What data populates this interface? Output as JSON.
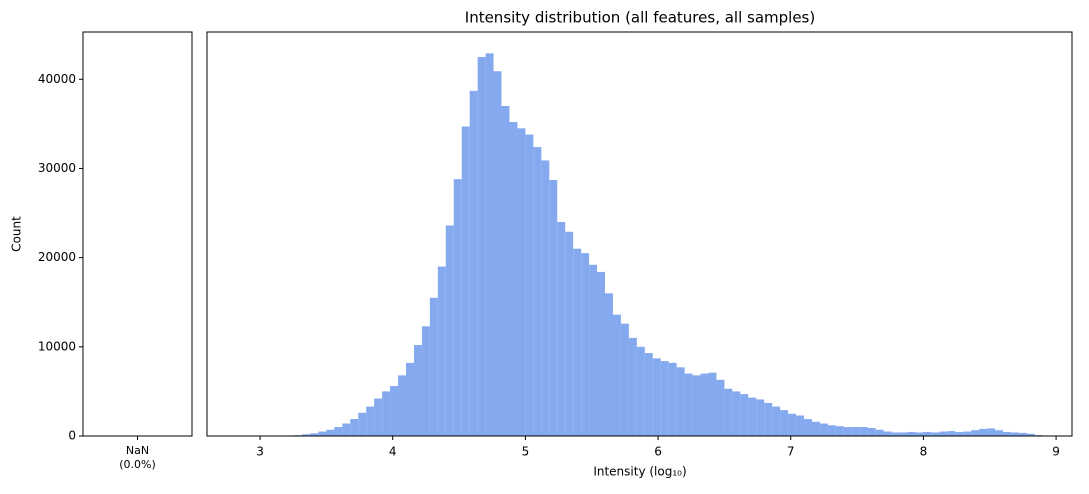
{
  "chart_data": [
    {
      "type": "bar",
      "categories": [
        "NaN"
      ],
      "subcategories": [
        "(0.0%)"
      ],
      "values": [
        0
      ],
      "color": "#84a9ef",
      "ylabel": "Count",
      "ylim": [
        0,
        45300
      ],
      "yticks": [
        0,
        10000,
        20000,
        30000,
        40000
      ]
    },
    {
      "type": "histogram",
      "title": "Intensity distribution (all features, all samples)",
      "xlabel": "Intensity (log₁₀)",
      "color": "#84a9ef",
      "xlim": [
        2.6,
        9.12
      ],
      "xticks": [
        3,
        4,
        5,
        6,
        7,
        8,
        9
      ],
      "ylim": [
        0,
        45300
      ],
      "bins": [
        2.9,
        2.96,
        3.02,
        3.08,
        3.14,
        3.2,
        3.26,
        3.32,
        3.38,
        3.44,
        3.5,
        3.56,
        3.62,
        3.68,
        3.74,
        3.8,
        3.86,
        3.92,
        3.98,
        4.04,
        4.1,
        4.16,
        4.22,
        4.28,
        4.34,
        4.4,
        4.46,
        4.52,
        4.58,
        4.64,
        4.7,
        4.76,
        4.82,
        4.88,
        4.94,
        5.0,
        5.06,
        5.12,
        5.18,
        5.24,
        5.3,
        5.36,
        5.42,
        5.48,
        5.54,
        5.6,
        5.66,
        5.72,
        5.78,
        5.84,
        5.9,
        5.96,
        6.02,
        6.08,
        6.14,
        6.2,
        6.26,
        6.32,
        6.38,
        6.44,
        6.5,
        6.56,
        6.62,
        6.68,
        6.74,
        6.8,
        6.86,
        6.92,
        6.98,
        7.04,
        7.1,
        7.16,
        7.22,
        7.28,
        7.34,
        7.4,
        7.46,
        7.52,
        7.58,
        7.64,
        7.7,
        7.76,
        7.82,
        7.88,
        7.94,
        8.0,
        8.06,
        8.12,
        8.18,
        8.24,
        8.3,
        8.36,
        8.42,
        8.48,
        8.54,
        8.6,
        8.66,
        8.72,
        8.78,
        8.84,
        8.9
      ],
      "values": [
        0,
        0,
        0,
        0,
        20,
        60,
        100,
        200,
        300,
        500,
        700,
        1000,
        1400,
        1900,
        2600,
        3300,
        4200,
        5000,
        5600,
        6800,
        8200,
        10200,
        12300,
        15500,
        19000,
        23600,
        28800,
        34700,
        38700,
        42500,
        42900,
        40900,
        37000,
        35200,
        34500,
        33800,
        32400,
        30900,
        28700,
        24000,
        22900,
        21000,
        20500,
        19200,
        18400,
        16000,
        13600,
        12600,
        11000,
        10000,
        9300,
        8700,
        8400,
        8200,
        7700,
        7000,
        6800,
        7000,
        7100,
        6300,
        5300,
        5000,
        4700,
        4300,
        4100,
        3700,
        3300,
        2900,
        2500,
        2300,
        1900,
        1600,
        1400,
        1200,
        1100,
        1000,
        1000,
        1000,
        900,
        700,
        500,
        400,
        400,
        450,
        400,
        450,
        400,
        500,
        550,
        450,
        500,
        650,
        800,
        850,
        650,
        450,
        400,
        350,
        250,
        100
      ]
    }
  ]
}
